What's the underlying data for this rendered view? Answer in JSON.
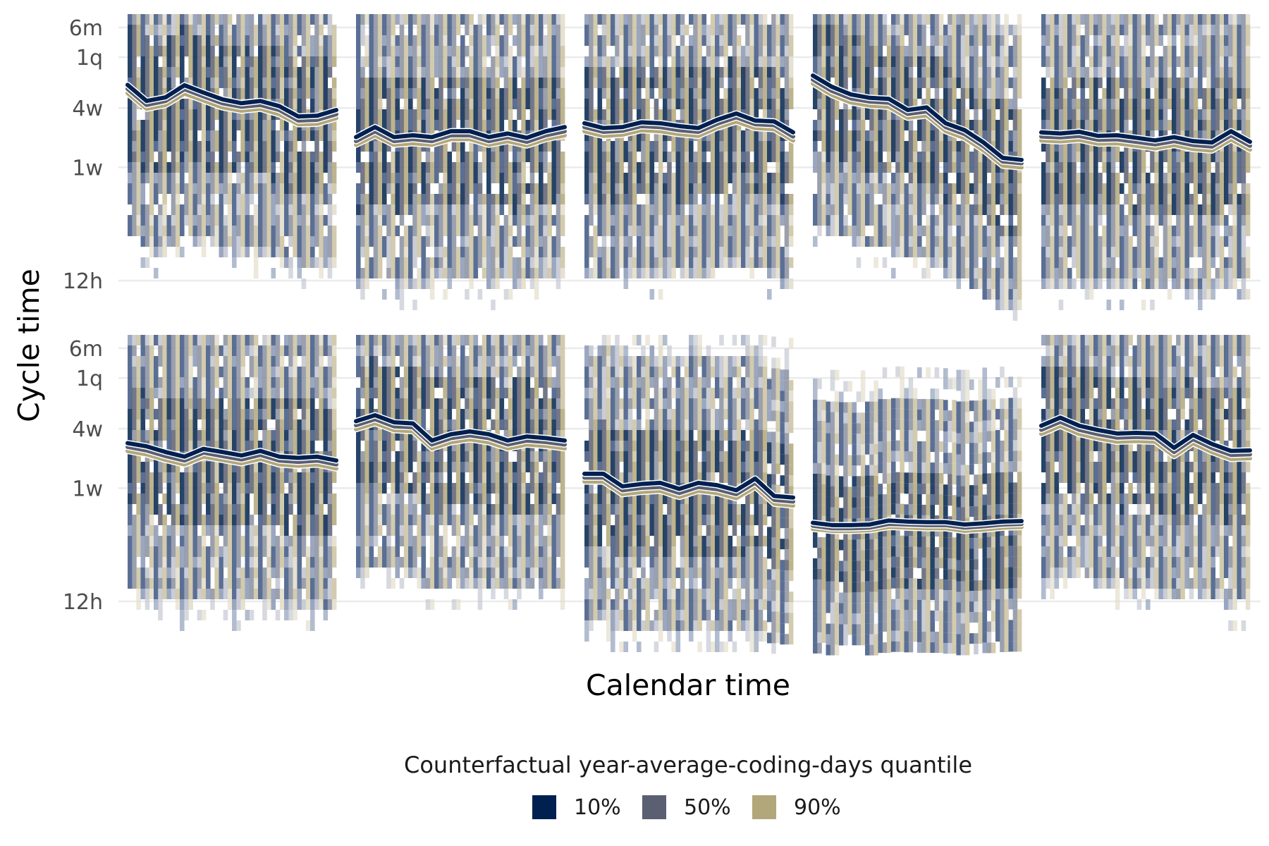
{
  "chart_data": {
    "type": "heatmap",
    "xlabel": "Calendar time",
    "ylabel": "Cycle time",
    "y_scale": "log",
    "y_ticks": [
      {
        "label": "12h",
        "hours": 12
      },
      {
        "label": "1w",
        "hours": 168
      },
      {
        "label": "4w",
        "hours": 672
      },
      {
        "label": "1q",
        "hours": 2190
      },
      {
        "label": "6m",
        "hours": 4380
      }
    ],
    "ylim_hours": [
      7,
      6000
    ],
    "grid": true,
    "x_tick_labels": "none",
    "facet_layout": {
      "rows": 2,
      "cols": 5
    },
    "legend": {
      "title": "Counterfactual year-average-coding-days quantile",
      "position": "bottom",
      "entries": [
        {
          "label": "10%",
          "color": "#002050"
        },
        {
          "label": "50%",
          "color": "#5a5f72"
        },
        {
          "label": "90%",
          "color": "#b2a77a"
        }
      ]
    },
    "panels": [
      {
        "name": "panel-1",
        "cols": 16,
        "spread": [
          0.05,
          0.6,
          0.66,
          0.42
        ],
        "series_start_index": 0,
        "series": [
          {
            "name": "10%",
            "values": [
              1150,
              790,
              860,
              1140,
              960,
              820,
              750,
              790,
              700,
              550,
              560,
              640
            ]
          },
          {
            "name": "50%",
            "values": [
              1050,
              720,
              790,
              1040,
              880,
              750,
              690,
              720,
              640,
              500,
              510,
              580
            ]
          },
          {
            "name": "90%",
            "values": [
              950,
              660,
              720,
              940,
              800,
              680,
              630,
              660,
              580,
              460,
              465,
              530
            ]
          }
        ]
      },
      {
        "name": "panel-2",
        "cols": 16,
        "spread": [
          0.08,
          0.5,
          0.55,
          0.44
        ],
        "series_start_index": 0,
        "series": [
          {
            "name": "10%",
            "values": [
              340,
              430,
              340,
              355,
              340,
              390,
              390,
              340,
              370,
              335,
              390,
              430
            ]
          },
          {
            "name": "50%",
            "values": [
              310,
              390,
              310,
              325,
              310,
              355,
              355,
              310,
              340,
              305,
              355,
              390
            ]
          },
          {
            "name": "90%",
            "values": [
              285,
              355,
              285,
              295,
              285,
              325,
              325,
              285,
              310,
              280,
              325,
              355
            ]
          }
        ]
      },
      {
        "name": "panel-3",
        "cols": 16,
        "spread": [
          0.02,
          0.62,
          0.62,
          0.42
        ],
        "series_start_index": 0,
        "series": [
          {
            "name": "10%",
            "values": [
              470,
              420,
              430,
              480,
              470,
              440,
              420,
              510,
              590,
              500,
              490,
              380
            ]
          },
          {
            "name": "50%",
            "values": [
              430,
              385,
              395,
              440,
              430,
              400,
              385,
              465,
              540,
              460,
              450,
              345
            ]
          },
          {
            "name": "90%",
            "values": [
              390,
              350,
              360,
              400,
              390,
              365,
              350,
              425,
              490,
              420,
              410,
              315
            ]
          }
        ]
      },
      {
        "name": "panel-4",
        "cols": 16,
        "spread": [
          0.1,
          0.55,
          0.6,
          0.42
        ],
        "series_start_index": 0,
        "series": [
          {
            "name": "10%",
            "values": [
              1430,
              1100,
              920,
              850,
              830,
              640,
              680,
              470,
              400,
              300,
              210,
              200
            ]
          },
          {
            "name": "50%",
            "values": [
              1300,
              1000,
              840,
              780,
              760,
              585,
              620,
              430,
              365,
              275,
              193,
              185
            ]
          },
          {
            "name": "90%",
            "values": [
              1190,
              910,
              765,
              710,
              690,
              535,
              565,
              392,
              333,
              250,
              175,
              168
            ]
          }
        ]
      },
      {
        "name": "panel-5",
        "cols": 16,
        "spread": [
          0.05,
          0.55,
          0.64,
          0.42
        ],
        "series_start_index": 0,
        "series": [
          {
            "name": "10%",
            "values": [
              380,
              370,
              385,
              350,
              355,
              335,
              315,
              340,
              310,
              300,
              390,
              305
            ]
          },
          {
            "name": "50%",
            "values": [
              345,
              338,
              350,
              320,
              323,
              305,
              287,
              310,
              283,
              273,
              355,
              278
            ]
          },
          {
            "name": "90%",
            "values": [
              315,
              308,
              320,
              292,
              295,
              278,
              262,
              283,
              258,
              249,
              323,
              254
            ]
          }
        ]
      },
      {
        "name": "panel-6",
        "cols": 16,
        "spread": [
          0.15,
          0.58,
          0.58,
          0.42
        ],
        "series_start_index": 3,
        "series": [
          {
            "name": "10%",
            "values": [
              480,
              445,
              390,
              350,
              420,
              390,
              360,
              400,
              350,
              340,
              350,
              320
            ]
          },
          {
            "name": "50%",
            "values": [
              440,
              405,
              355,
              320,
              385,
              355,
              328,
              365,
              320,
              310,
              320,
              292
            ]
          },
          {
            "name": "90%",
            "values": [
              400,
              370,
              325,
              292,
              350,
              325,
              300,
              333,
              292,
              283,
              292,
              266
            ]
          }
        ]
      },
      {
        "name": "panel-7",
        "cols": 16,
        "spread": [
          0.1,
          0.7,
          0.66,
          0.42
        ],
        "series_start_index": 3,
        "series": [
          {
            "name": "10%",
            "values": [
              800,
              920,
              780,
              760,
              510,
              590,
              630,
              590,
              510,
              560,
              540,
              510
            ]
          },
          {
            "name": "50%",
            "values": [
              730,
              840,
              710,
              695,
              465,
              540,
              575,
              540,
              465,
              510,
              493,
              465
            ]
          },
          {
            "name": "90%",
            "values": [
              665,
              765,
              650,
              635,
              425,
              490,
              525,
              490,
              425,
              465,
              450,
              425
            ]
          }
        ]
      },
      {
        "name": "panel-8",
        "cols": 16,
        "spread": [
          0.2,
          0.4,
          0.5,
          0.46
        ],
        "series_start_index": 3,
        "series": [
          {
            "name": "10%",
            "values": [
              235,
              235,
              175,
              185,
              190,
              165,
              190,
              180,
              160,
              210,
              140,
              135
            ]
          },
          {
            "name": "50%",
            "values": [
              215,
              215,
              160,
              169,
              173,
              150,
              173,
              164,
              146,
              191,
              128,
              123
            ]
          },
          {
            "name": "90%",
            "values": [
              196,
              196,
              146,
              154,
              158,
              137,
              158,
              150,
              133,
              174,
              117,
              112
            ]
          }
        ]
      },
      {
        "name": "panel-9",
        "cols": 16,
        "spread": [
          0.3,
          0.25,
          0.45,
          0.42
        ],
        "series_start_index": 3,
        "series": [
          {
            "name": "10%",
            "values": [
              75,
              71,
              71,
              72,
              79,
              77,
              76,
              76,
              72,
              74,
              77,
              78
            ]
          },
          {
            "name": "50%",
            "values": [
              70,
              66,
              66,
              67,
              73,
              72,
              71,
              71,
              67,
              69,
              72,
              73
            ]
          },
          {
            "name": "90%",
            "values": [
              65,
              62,
              62,
              63,
              68,
              67,
              66,
              66,
              62,
              64,
              67,
              68
            ]
          }
        ]
      },
      {
        "name": "panel-10",
        "cols": 16,
        "spread": [
          0.1,
          0.8,
          0.7,
          0.42
        ],
        "series_start_index": 3,
        "series": [
          {
            "name": "10%",
            "values": [
              720,
              870,
              720,
              650,
              600,
              610,
              600,
              430,
              580,
              470,
              400,
              405
            ]
          },
          {
            "name": "50%",
            "values": [
              655,
              790,
              655,
              590,
              545,
              555,
              545,
              390,
              528,
              428,
              365,
              370
            ]
          },
          {
            "name": "90%",
            "values": [
              595,
              720,
              595,
              537,
              496,
              505,
              496,
              355,
              480,
              390,
              332,
              337
            ]
          }
        ]
      }
    ]
  }
}
